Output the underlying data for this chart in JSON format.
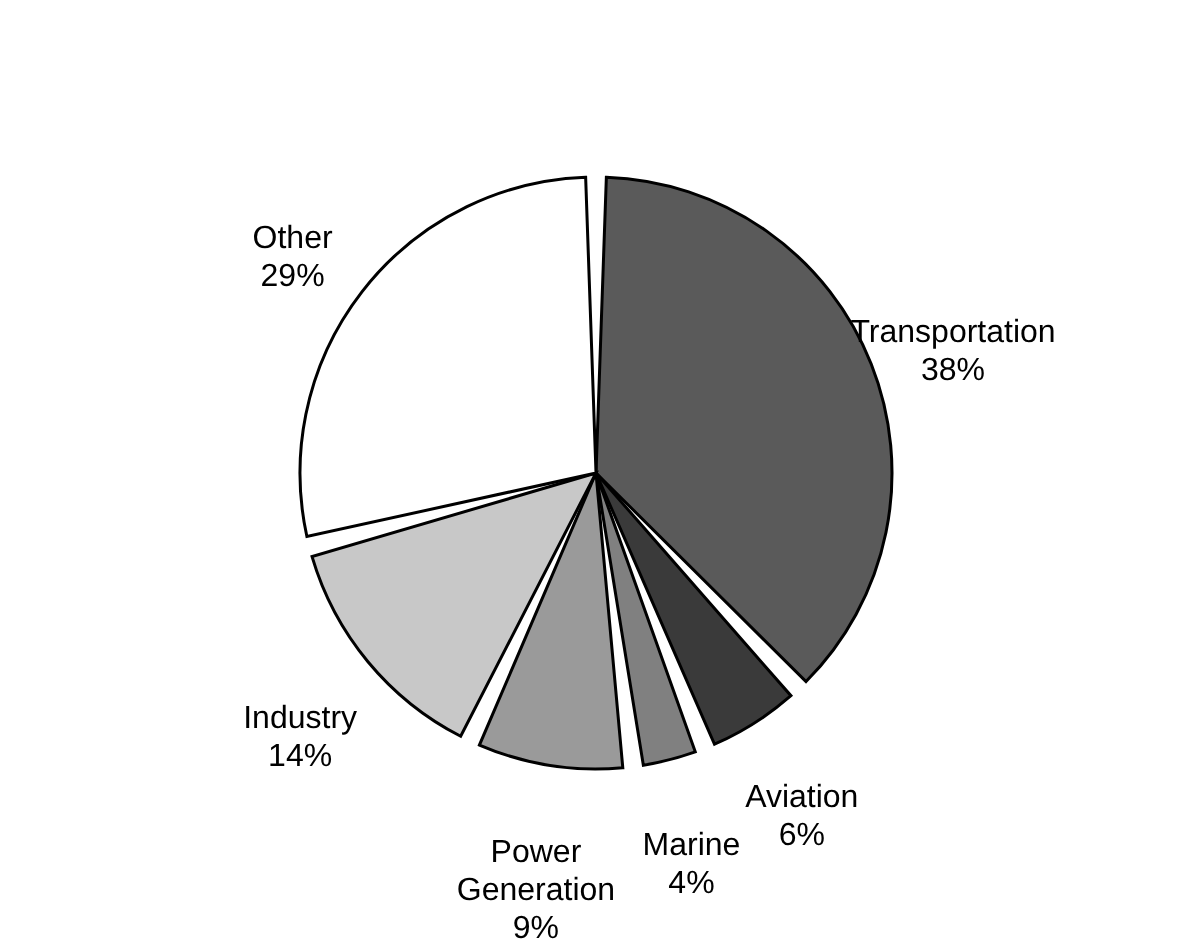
{
  "chart_data": {
    "type": "pie",
    "categories": [
      "Transportation",
      "Aviation",
      "Marine",
      "Power Generation",
      "Industry",
      "Other"
    ],
    "values": [
      38,
      6,
      4,
      9,
      14,
      29
    ],
    "colors": [
      "#5a5a5a",
      "#3a3a3a",
      "#808080",
      "#9a9a9a",
      "#c8c8c8",
      "#ffffff"
    ],
    "value_labels": [
      "38%",
      "6%",
      "4%",
      "9%",
      "14%",
      "29%"
    ]
  }
}
